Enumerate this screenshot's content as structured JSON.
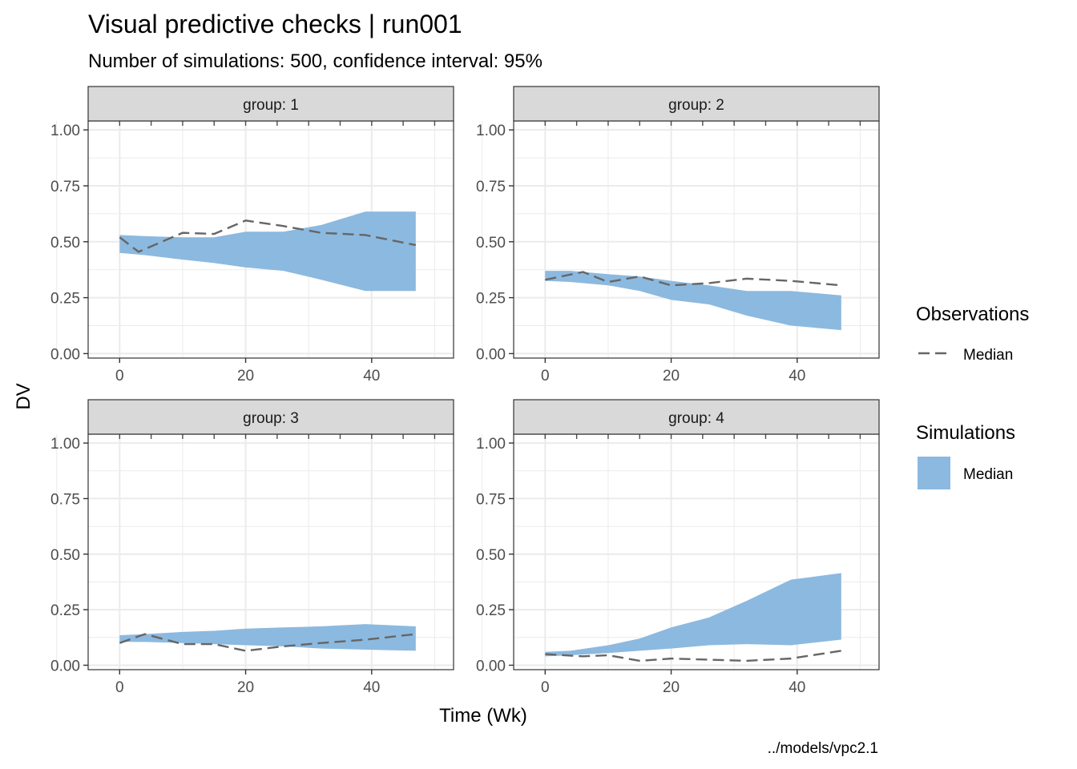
{
  "chart_data": {
    "type": "area",
    "title": "Visual predictive checks | run001",
    "subtitle": "Number of simulations: 500, confidence interval: 95%",
    "xlabel": "Time (Wk)",
    "ylabel": "DV",
    "caption": "../models/vpc2.1",
    "xlim": [
      -5,
      53
    ],
    "ylim": [
      -0.02,
      1.04
    ],
    "x_ticks": [
      0,
      20,
      40
    ],
    "x_tick_labels": [
      "0",
      "20",
      "40"
    ],
    "y_ticks": [
      0,
      0.25,
      0.5,
      0.75,
      1.0
    ],
    "y_tick_labels": [
      "0.00",
      "0.25",
      "0.50",
      "0.75",
      "1.00"
    ],
    "grid": true,
    "legend_position": "right",
    "legend": [
      {
        "title": "Observations",
        "entries": [
          {
            "label": "Median",
            "kind": "line",
            "color": "#666666",
            "dash": "dashed"
          }
        ]
      },
      {
        "title": "Simulations",
        "entries": [
          {
            "label": "Median",
            "kind": "fill",
            "color": "#8cb9df"
          }
        ]
      }
    ],
    "colors": {
      "band": "#8cb9df",
      "line": "#666666",
      "strip_bg": "#d9d9d9",
      "grid": "#ebebeb"
    },
    "panels": [
      {
        "strip": "group: 1",
        "band": {
          "x": [
            0,
            4,
            10,
            15,
            20,
            26,
            32,
            39,
            47
          ],
          "lower": [
            0.45,
            0.44,
            0.42,
            0.405,
            0.385,
            0.37,
            0.33,
            0.28,
            0.28
          ],
          "upper": [
            0.53,
            0.525,
            0.52,
            0.52,
            0.545,
            0.545,
            0.575,
            0.635,
            0.635
          ]
        },
        "observed": {
          "x": [
            0,
            3,
            10,
            15,
            20,
            26,
            32,
            39,
            47
          ],
          "y": [
            0.52,
            0.455,
            0.54,
            0.535,
            0.595,
            0.57,
            0.54,
            0.53,
            0.485
          ]
        }
      },
      {
        "strip": "group: 2",
        "band": {
          "x": [
            0,
            4,
            10,
            15,
            20,
            26,
            32,
            39,
            47
          ],
          "lower": [
            0.325,
            0.32,
            0.305,
            0.28,
            0.24,
            0.22,
            0.17,
            0.125,
            0.105
          ],
          "upper": [
            0.37,
            0.37,
            0.355,
            0.345,
            0.325,
            0.305,
            0.28,
            0.28,
            0.26
          ]
        },
        "observed": {
          "x": [
            0,
            6,
            10,
            15,
            20,
            26,
            32,
            39,
            47
          ],
          "y": [
            0.33,
            0.365,
            0.32,
            0.345,
            0.305,
            0.315,
            0.335,
            0.325,
            0.305
          ]
        }
      },
      {
        "strip": "group: 3",
        "band": {
          "x": [
            0,
            4,
            10,
            15,
            20,
            26,
            32,
            39,
            47
          ],
          "lower": [
            0.105,
            0.105,
            0.1,
            0.095,
            0.09,
            0.085,
            0.075,
            0.07,
            0.065
          ],
          "upper": [
            0.135,
            0.14,
            0.15,
            0.155,
            0.165,
            0.17,
            0.175,
            0.185,
            0.175
          ]
        },
        "observed": {
          "x": [
            0,
            4,
            10,
            15,
            20,
            26,
            32,
            39,
            47
          ],
          "y": [
            0.1,
            0.14,
            0.095,
            0.095,
            0.065,
            0.085,
            0.1,
            0.115,
            0.14
          ]
        }
      },
      {
        "strip": "group: 4",
        "band": {
          "x": [
            0,
            4,
            10,
            15,
            20,
            26,
            32,
            39,
            47
          ],
          "lower": [
            0.04,
            0.045,
            0.055,
            0.065,
            0.075,
            0.09,
            0.095,
            0.09,
            0.115
          ],
          "upper": [
            0.06,
            0.065,
            0.09,
            0.12,
            0.17,
            0.215,
            0.29,
            0.385,
            0.415
          ]
        },
        "observed": {
          "x": [
            0,
            6,
            10,
            15,
            20,
            26,
            32,
            39,
            47
          ],
          "y": [
            0.05,
            0.04,
            0.045,
            0.02,
            0.03,
            0.025,
            0.02,
            0.03,
            0.065
          ]
        }
      }
    ]
  }
}
